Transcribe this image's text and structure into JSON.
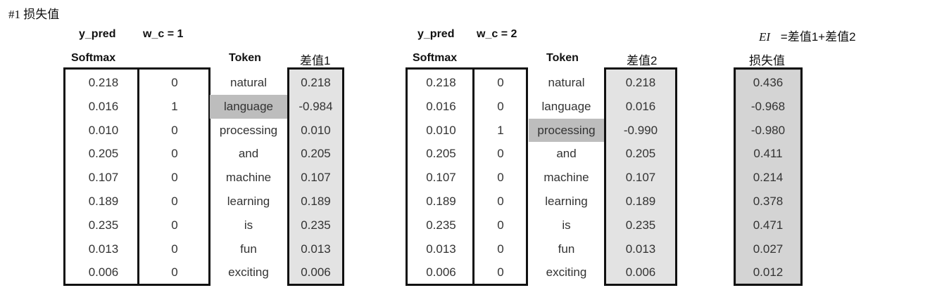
{
  "title": "#1 损失值",
  "left": {
    "y_pred_label": "y_pred",
    "wc_label": "w_c = 1",
    "softmax_header": "Softmax",
    "token_header": "Token",
    "diff_header": "差值1",
    "softmax": [
      "0.218",
      "0.016",
      "0.010",
      "0.205",
      "0.107",
      "0.189",
      "0.235",
      "0.013",
      "0.006"
    ],
    "wc": [
      "0",
      "1",
      "0",
      "0",
      "0",
      "0",
      "0",
      "0",
      "0"
    ],
    "tokens": [
      "natural",
      "language",
      "processing",
      "and",
      "machine",
      "learning",
      "is",
      "fun",
      "exciting"
    ],
    "diff": [
      "0.218",
      "-0.984",
      "0.010",
      "0.205",
      "0.107",
      "0.189",
      "0.235",
      "0.013",
      "0.006"
    ],
    "highlight_index": 1
  },
  "right": {
    "y_pred_label": "y_pred",
    "wc_label": "w_c = 2",
    "softmax_header": "Softmax",
    "token_header": "Token",
    "diff_header": "差值2",
    "softmax": [
      "0.218",
      "0.016",
      "0.010",
      "0.205",
      "0.107",
      "0.189",
      "0.235",
      "0.013",
      "0.006"
    ],
    "wc": [
      "0",
      "0",
      "1",
      "0",
      "0",
      "0",
      "0",
      "0",
      "0"
    ],
    "tokens": [
      "natural",
      "language",
      "processing",
      "and",
      "machine",
      "learning",
      "is",
      "fun",
      "exciting"
    ],
    "diff": [
      "0.218",
      "0.016",
      "-0.990",
      "0.205",
      "0.107",
      "0.189",
      "0.235",
      "0.013",
      "0.006"
    ],
    "highlight_index": 2
  },
  "loss": {
    "formula_ei": "EI",
    "formula_rest": "=差值1+差值2",
    "header": "损失值",
    "values": [
      "0.436",
      "-0.968",
      "-0.980",
      "0.411",
      "0.214",
      "0.378",
      "0.471",
      "0.027",
      "0.012"
    ]
  }
}
